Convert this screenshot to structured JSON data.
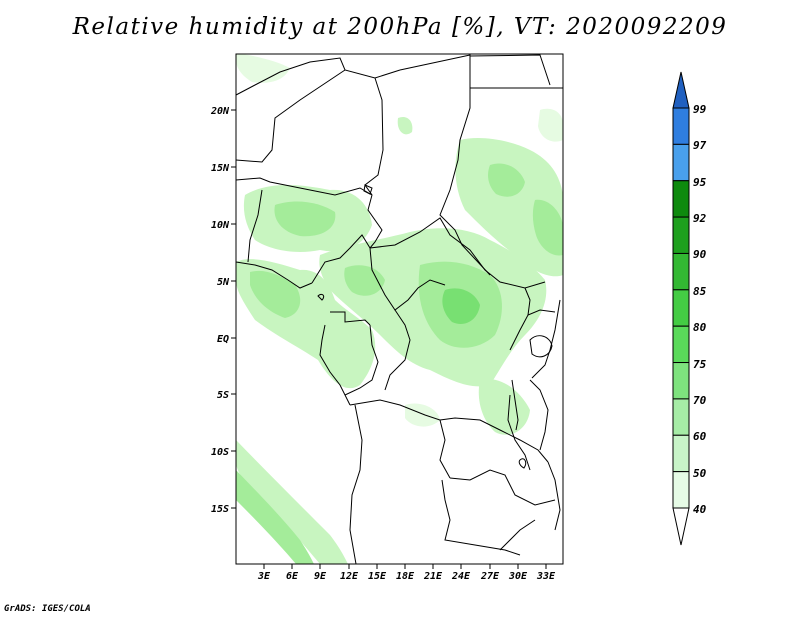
{
  "title": "Relative humidity at 200hPa [%], VT: 2020092209",
  "map": {
    "lat_labels": [
      "20N",
      "15N",
      "10N",
      "5N",
      "EQ",
      "5S",
      "10S",
      "15S"
    ],
    "lon_labels": [
      "3E",
      "6E",
      "9E",
      "12E",
      "15E",
      "18E",
      "21E",
      "24E",
      "27E",
      "30E",
      "33E"
    ],
    "shading_colors": [
      "#e6fbe2",
      "#c8f5c0",
      "#a4ec9a",
      "#78e072"
    ]
  },
  "colorbar": {
    "levels": [
      "99",
      "97",
      "95",
      "92",
      "90",
      "85",
      "80",
      "75",
      "70",
      "60",
      "50",
      "40"
    ],
    "colors": [
      "#2a6ecc",
      "#2f7ee0",
      "#49a0ec",
      "#0e8a0e",
      "#1ea01e",
      "#33b833",
      "#44cc44",
      "#5ada5a",
      "#7ee27e",
      "#a6eca6",
      "#c8f4c8",
      "#e6fbe6"
    ],
    "tip_top_color": "#2060c0",
    "tip_bottom_color": "#ffffff"
  },
  "credit": "GrADS: IGES/COLA"
}
